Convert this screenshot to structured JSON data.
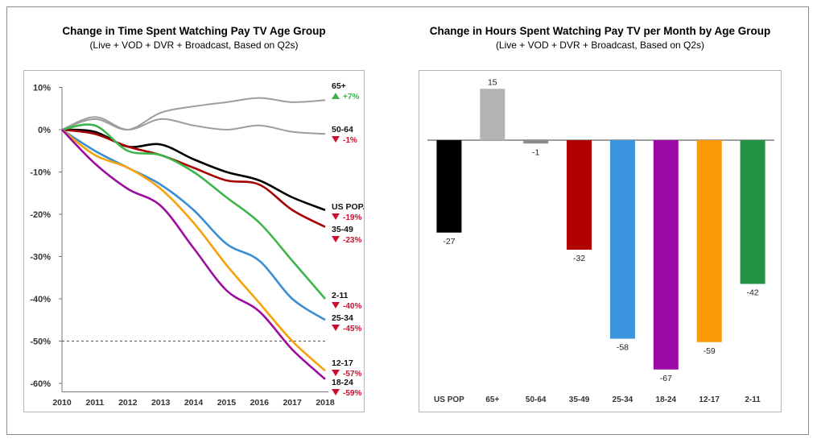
{
  "chart_data": [
    {
      "type": "line",
      "title": "Change in Time Spent Watching Pay TV Age Group",
      "subtitle": "(Live + VOD + DVR + Broadcast, Based on Q2s)",
      "x": [
        2010,
        2011,
        2012,
        2013,
        2014,
        2015,
        2016,
        2017,
        2018
      ],
      "x_tick_labels": [
        "2010",
        "2011",
        "2012",
        "2013",
        "2014",
        "2015",
        "2016",
        "2017",
        "2018"
      ],
      "y_tick_labels": [
        "10%",
        "0%",
        "-10%",
        "-20%",
        "-30%",
        "-40%",
        "-50%",
        "-60%"
      ],
      "y_ticks": [
        10,
        0,
        -10,
        -20,
        -30,
        -40,
        -50,
        -60
      ],
      "ylim": [
        -62,
        12
      ],
      "reference_line": -50,
      "series": [
        {
          "name": "65+",
          "change_label": "+7%",
          "direction": "up",
          "color": "#9e9e9e",
          "values": [
            0,
            2.5,
            0,
            4,
            5.5,
            6.5,
            7.5,
            6.5,
            7
          ]
        },
        {
          "name": "50-64",
          "change_label": "-1%",
          "direction": "down",
          "color": "#9e9e9e",
          "values": [
            0,
            3,
            0,
            2.5,
            1,
            0,
            1,
            -0.5,
            -1
          ]
        },
        {
          "name": "US POP.",
          "change_label": "-19%",
          "direction": "down",
          "color": "#000000",
          "values": [
            0,
            -0.5,
            -4,
            -3.5,
            -7,
            -10,
            -12,
            -16,
            -19
          ]
        },
        {
          "name": "35-49",
          "change_label": "-23%",
          "direction": "down",
          "color": "#a80000",
          "values": [
            0,
            -1,
            -4,
            -6,
            -9,
            -12,
            -13,
            -19,
            -23
          ]
        },
        {
          "name": "2-11",
          "change_label": "-40%",
          "direction": "down",
          "color": "#3cb54a",
          "values": [
            0,
            1,
            -5,
            -6,
            -10,
            -16,
            -22,
            -31,
            -40
          ]
        },
        {
          "name": "25-34",
          "change_label": "-45%",
          "direction": "down",
          "color": "#3b8ed1",
          "values": [
            0,
            -5,
            -9,
            -13,
            -19,
            -27,
            -31,
            -40,
            -45
          ]
        },
        {
          "name": "12-17",
          "change_label": "-57%",
          "direction": "down",
          "color": "#f7a20c",
          "values": [
            0,
            -6,
            -9,
            -14,
            -22,
            -32,
            -41,
            -50,
            -57
          ]
        },
        {
          "name": "18-24",
          "change_label": "-59%",
          "direction": "down",
          "color": "#9c0d9e",
          "values": [
            0,
            -8,
            -14,
            -18,
            -28,
            -38,
            -43,
            -52,
            -59
          ]
        }
      ],
      "legend_placement": "right end labels",
      "grid": false
    },
    {
      "type": "bar",
      "title": "Change in Hours Spent Watching Pay TV per Month by Age Group",
      "subtitle": "(Live + VOD + DVR + Broadcast, Based on Q2s)",
      "categories": [
        "US POP",
        "65+",
        "50-64",
        "35-49",
        "25-34",
        "18-24",
        "12-17",
        "2-11"
      ],
      "values": [
        -27,
        15,
        -1,
        -32,
        -58,
        -67,
        -59,
        -42
      ],
      "value_labels": [
        "-27",
        "15",
        "-1",
        "-32",
        "-58",
        "-67",
        "-59",
        "-42"
      ],
      "colors": [
        "#000000",
        "#b3b3b3",
        "#8c8c8c",
        "#b20000",
        "#3b95df",
        "#9c0aa6",
        "#fa9a08",
        "#249243"
      ],
      "ylim": [
        -70,
        17
      ],
      "grid": false
    }
  ],
  "colors": {
    "up_marker": "#3cb54a",
    "down_marker": "#c8102e",
    "axis": "#777777",
    "frame_border": "#8c8c8c"
  }
}
